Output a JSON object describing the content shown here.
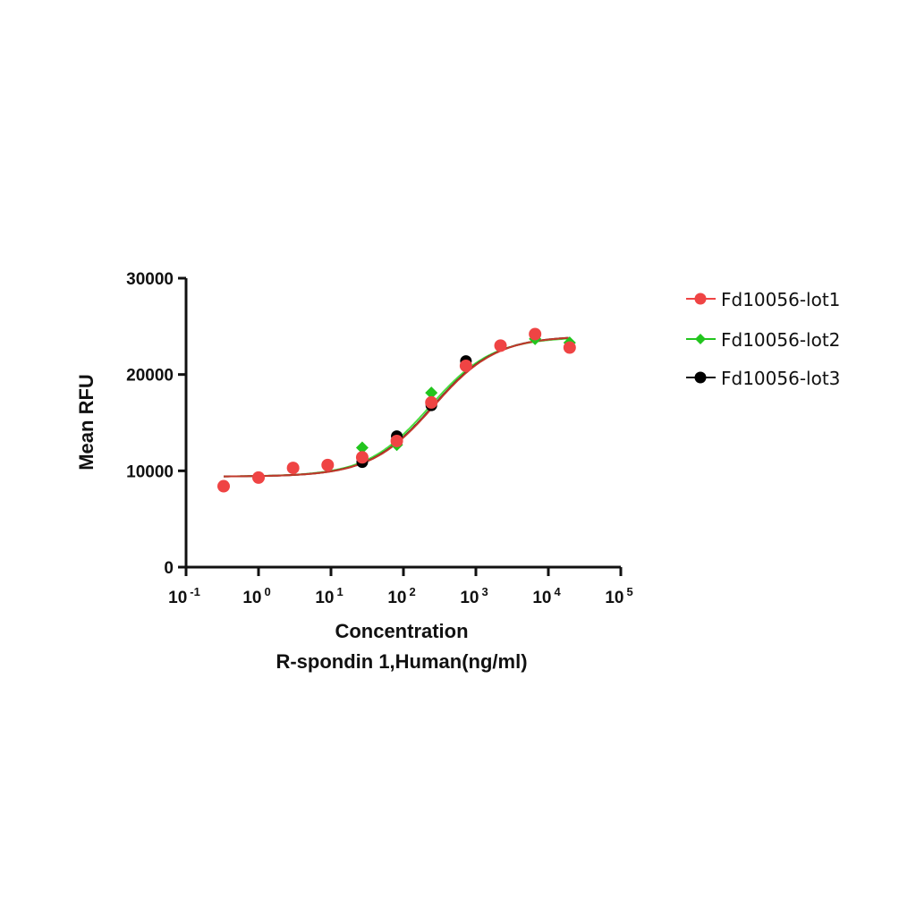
{
  "chart_data": {
    "type": "scatter",
    "subtype": "dose-response with 4PL fitted curves, log x-axis",
    "title": "",
    "xlabel": "Concentration\nR-spondin 1,Human(ng/ml)",
    "xlabel_lines": [
      "Concentration",
      "R-spondin 1,Human(ng/ml)"
    ],
    "ylabel": "Mean RFU",
    "xscale": "log",
    "xlim": [
      0.1,
      100000
    ],
    "ylim": [
      0,
      30000
    ],
    "x_ticks": [
      {
        "base": "10",
        "exp": "-1",
        "value": 0.1
      },
      {
        "base": "10",
        "exp": "0",
        "value": 1
      },
      {
        "base": "10",
        "exp": "1",
        "value": 10
      },
      {
        "base": "10",
        "exp": "2",
        "value": 100
      },
      {
        "base": "10",
        "exp": "3",
        "value": 1000
      },
      {
        "base": "10",
        "exp": "4",
        "value": 10000
      },
      {
        "base": "10",
        "exp": "5",
        "value": 100000
      }
    ],
    "y_ticks": [
      "0",
      "10000",
      "20000",
      "30000"
    ],
    "grid": false,
    "legend_position": "right",
    "x": [
      0.33,
      1,
      3,
      9,
      27,
      81,
      243,
      729,
      2187,
      6561,
      19683
    ],
    "series": [
      {
        "name": "Fd10056-lot1",
        "color": "#ef4444",
        "line_color": "#c0392b",
        "marker": "circle",
        "values": [
          8400,
          9300,
          10300,
          10600,
          11400,
          13100,
          17100,
          20900,
          23000,
          24200,
          22800
        ],
        "fit": {
          "bottom": 9400,
          "top": 24000,
          "ec50": 260,
          "hill": 1.0
        }
      },
      {
        "name": "Fd10056-lot2",
        "color": "#22c51e",
        "line_color": "#4ade40",
        "marker": "diamond",
        "values": [
          null,
          null,
          null,
          null,
          12400,
          12700,
          18100,
          null,
          null,
          23700,
          23300
        ],
        "fit": {
          "bottom": 9400,
          "top": 23900,
          "ec50": 230,
          "hill": 1.0
        }
      },
      {
        "name": "Fd10056-lot3",
        "color": "#000000",
        "line_color": "#3a1a10",
        "marker": "circle",
        "values": [
          null,
          null,
          null,
          null,
          10900,
          13600,
          16800,
          21400,
          null,
          null,
          null
        ],
        "fit": {
          "bottom": 9400,
          "top": 24000,
          "ec50": 255,
          "hill": 1.0
        }
      }
    ]
  },
  "legend": {
    "items": [
      {
        "label": "Fd10056-lot1"
      },
      {
        "label": "Fd10056-lot2"
      },
      {
        "label": "Fd10056-lot3"
      }
    ]
  }
}
